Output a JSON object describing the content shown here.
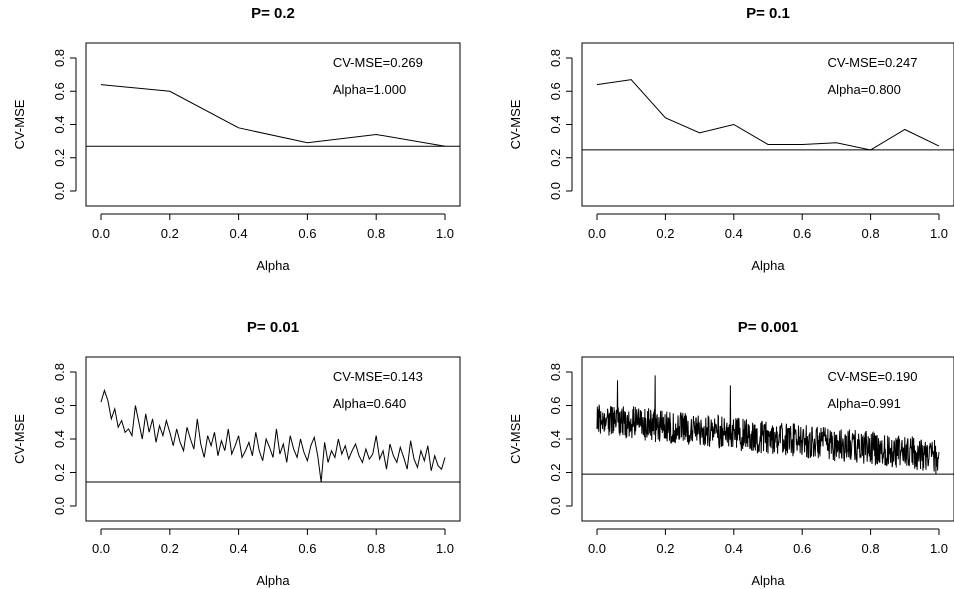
{
  "colors": {
    "line": "#000000",
    "frame": "#000000",
    "background": "#ffffff"
  },
  "chart_data": [
    {
      "type": "line",
      "title": "P= 0.2",
      "xlabel": "Alpha",
      "ylabel": "CV-MSE",
      "xlim": [
        0,
        1
      ],
      "ylim": [
        0,
        0.8
      ],
      "xticks": [
        "0.0",
        "0.2",
        "0.4",
        "0.6",
        "0.8",
        "1.0"
      ],
      "yticks": [
        "0.0",
        "0.2",
        "0.4",
        "0.6",
        "0.8"
      ],
      "grid": false,
      "series": [
        {
          "x": [
            0.0,
            0.2,
            0.4,
            0.6,
            0.8,
            1.0
          ],
          "y": [
            0.64,
            0.6,
            0.38,
            0.29,
            0.34,
            0.269
          ]
        }
      ],
      "hline": 0.269,
      "annotations": [
        "CV-MSE=0.269",
        "Alpha=1.000"
      ]
    },
    {
      "type": "line",
      "title": "P= 0.1",
      "xlabel": "Alpha",
      "ylabel": "CV-MSE",
      "xlim": [
        0,
        1
      ],
      "ylim": [
        0,
        0.8
      ],
      "xticks": [
        "0.0",
        "0.2",
        "0.4",
        "0.6",
        "0.8",
        "1.0"
      ],
      "yticks": [
        "0.0",
        "0.2",
        "0.4",
        "0.6",
        "0.8"
      ],
      "grid": false,
      "series": [
        {
          "x": [
            0.0,
            0.1,
            0.2,
            0.3,
            0.4,
            0.5,
            0.6,
            0.7,
            0.8,
            0.9,
            1.0
          ],
          "y": [
            0.64,
            0.67,
            0.44,
            0.35,
            0.4,
            0.28,
            0.28,
            0.29,
            0.247,
            0.37,
            0.27
          ]
        }
      ],
      "hline": 0.247,
      "annotations": [
        "CV-MSE=0.247",
        "Alpha=0.800"
      ]
    },
    {
      "type": "line",
      "title": "P= 0.01",
      "xlabel": "Alpha",
      "ylabel": "CV-MSE",
      "xlim": [
        0,
        1
      ],
      "ylim": [
        0,
        0.8
      ],
      "xticks": [
        "0.0",
        "0.2",
        "0.4",
        "0.6",
        "0.8",
        "1.0"
      ],
      "yticks": [
        "0.0",
        "0.2",
        "0.4",
        "0.6",
        "0.8"
      ],
      "grid": false,
      "series": [
        {
          "x": [
            0.0,
            0.01,
            0.02,
            0.03,
            0.04,
            0.05,
            0.06,
            0.07,
            0.08,
            0.09,
            0.1,
            0.11,
            0.12,
            0.13,
            0.14,
            0.15,
            0.16,
            0.17,
            0.18,
            0.19,
            0.2,
            0.21,
            0.22,
            0.23,
            0.24,
            0.25,
            0.26,
            0.27,
            0.28,
            0.29,
            0.3,
            0.31,
            0.32,
            0.33,
            0.34,
            0.35,
            0.36,
            0.37,
            0.38,
            0.39,
            0.4,
            0.41,
            0.42,
            0.43,
            0.44,
            0.45,
            0.46,
            0.47,
            0.48,
            0.49,
            0.5,
            0.51,
            0.52,
            0.53,
            0.54,
            0.55,
            0.56,
            0.57,
            0.58,
            0.59,
            0.6,
            0.61,
            0.62,
            0.63,
            0.64,
            0.65,
            0.66,
            0.67,
            0.68,
            0.69,
            0.7,
            0.71,
            0.72,
            0.73,
            0.74,
            0.75,
            0.76,
            0.77,
            0.78,
            0.79,
            0.8,
            0.81,
            0.82,
            0.83,
            0.84,
            0.85,
            0.86,
            0.87,
            0.88,
            0.89,
            0.9,
            0.91,
            0.92,
            0.93,
            0.94,
            0.95,
            0.96,
            0.97,
            0.98,
            0.99,
            1.0
          ],
          "y": [
            0.62,
            0.69,
            0.63,
            0.52,
            0.58,
            0.47,
            0.51,
            0.44,
            0.46,
            0.42,
            0.6,
            0.5,
            0.4,
            0.55,
            0.44,
            0.52,
            0.38,
            0.48,
            0.42,
            0.51,
            0.44,
            0.36,
            0.46,
            0.38,
            0.33,
            0.47,
            0.4,
            0.34,
            0.52,
            0.37,
            0.29,
            0.42,
            0.36,
            0.44,
            0.3,
            0.39,
            0.33,
            0.46,
            0.31,
            0.36,
            0.42,
            0.29,
            0.33,
            0.38,
            0.3,
            0.44,
            0.33,
            0.27,
            0.4,
            0.35,
            0.29,
            0.46,
            0.31,
            0.37,
            0.26,
            0.42,
            0.34,
            0.29,
            0.4,
            0.32,
            0.27,
            0.36,
            0.41,
            0.3,
            0.143,
            0.38,
            0.26,
            0.33,
            0.29,
            0.4,
            0.31,
            0.36,
            0.28,
            0.33,
            0.37,
            0.3,
            0.26,
            0.34,
            0.28,
            0.31,
            0.42,
            0.28,
            0.33,
            0.22,
            0.37,
            0.3,
            0.26,
            0.35,
            0.29,
            0.22,
            0.39,
            0.28,
            0.23,
            0.33,
            0.27,
            0.36,
            0.21,
            0.3,
            0.24,
            0.22,
            0.29
          ]
        }
      ],
      "hline": 0.143,
      "annotations": [
        "CV-MSE=0.143",
        "Alpha=0.640"
      ]
    },
    {
      "type": "line",
      "title": "P= 0.001",
      "xlabel": "Alpha",
      "ylabel": "CV-MSE",
      "xlim": [
        0,
        1
      ],
      "ylim": [
        0,
        0.8
      ],
      "xticks": [
        "0.0",
        "0.2",
        "0.4",
        "0.6",
        "0.8",
        "1.0"
      ],
      "yticks": [
        "0.0",
        "0.2",
        "0.4",
        "0.6",
        "0.8"
      ],
      "grid": false,
      "series": [
        {
          "n_points": 1001,
          "x_range": [
            0,
            1
          ],
          "trend_start": 0.52,
          "trend_end": 0.3,
          "noise_amplitude": 0.1,
          "spikes": [
            {
              "x": 0.17,
              "y": 0.78
            },
            {
              "x": 0.39,
              "y": 0.72
            },
            {
              "x": 0.06,
              "y": 0.75
            }
          ],
          "min_point": {
            "x": 0.991,
            "y": 0.19
          }
        }
      ],
      "hline": 0.19,
      "annotations": [
        "CV-MSE=0.190",
        "Alpha=0.991"
      ]
    }
  ]
}
